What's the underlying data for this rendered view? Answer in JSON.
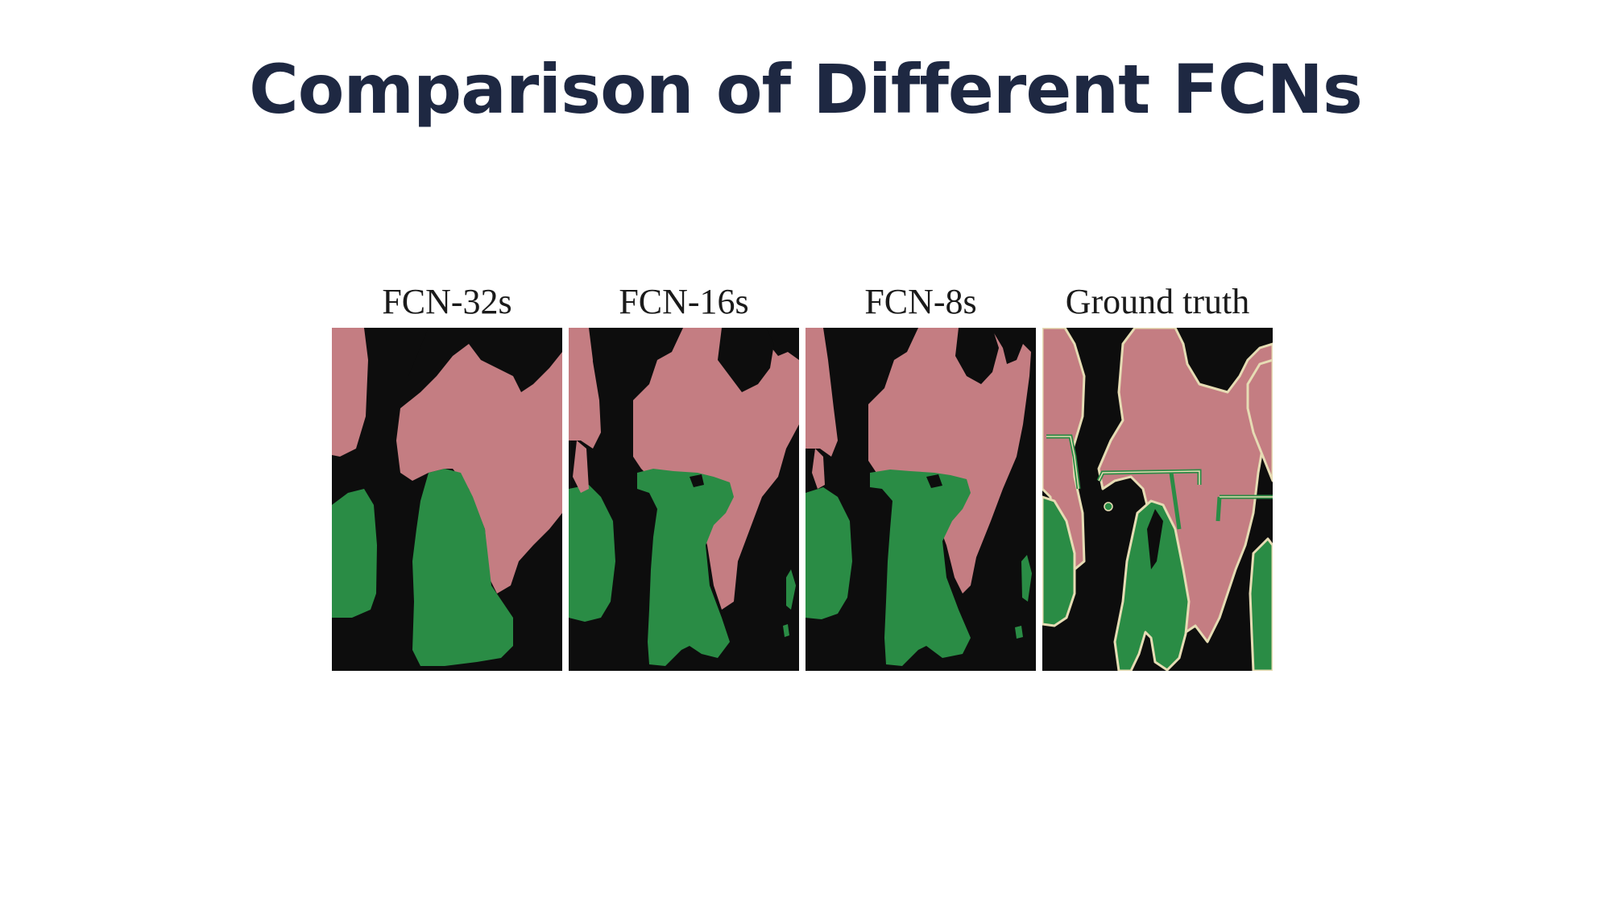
{
  "slide": {
    "title": "Comparison of Different FCNs"
  },
  "figure": {
    "panels": [
      {
        "label": "FCN-32s"
      },
      {
        "label": "FCN-16s"
      },
      {
        "label": "FCN-8s"
      },
      {
        "label": "Ground truth"
      }
    ],
    "colors": {
      "background": "#0d0d0d",
      "person": "#c47d82",
      "bicycle": "#2a8c45",
      "boundary": "#e6dcb4"
    }
  }
}
